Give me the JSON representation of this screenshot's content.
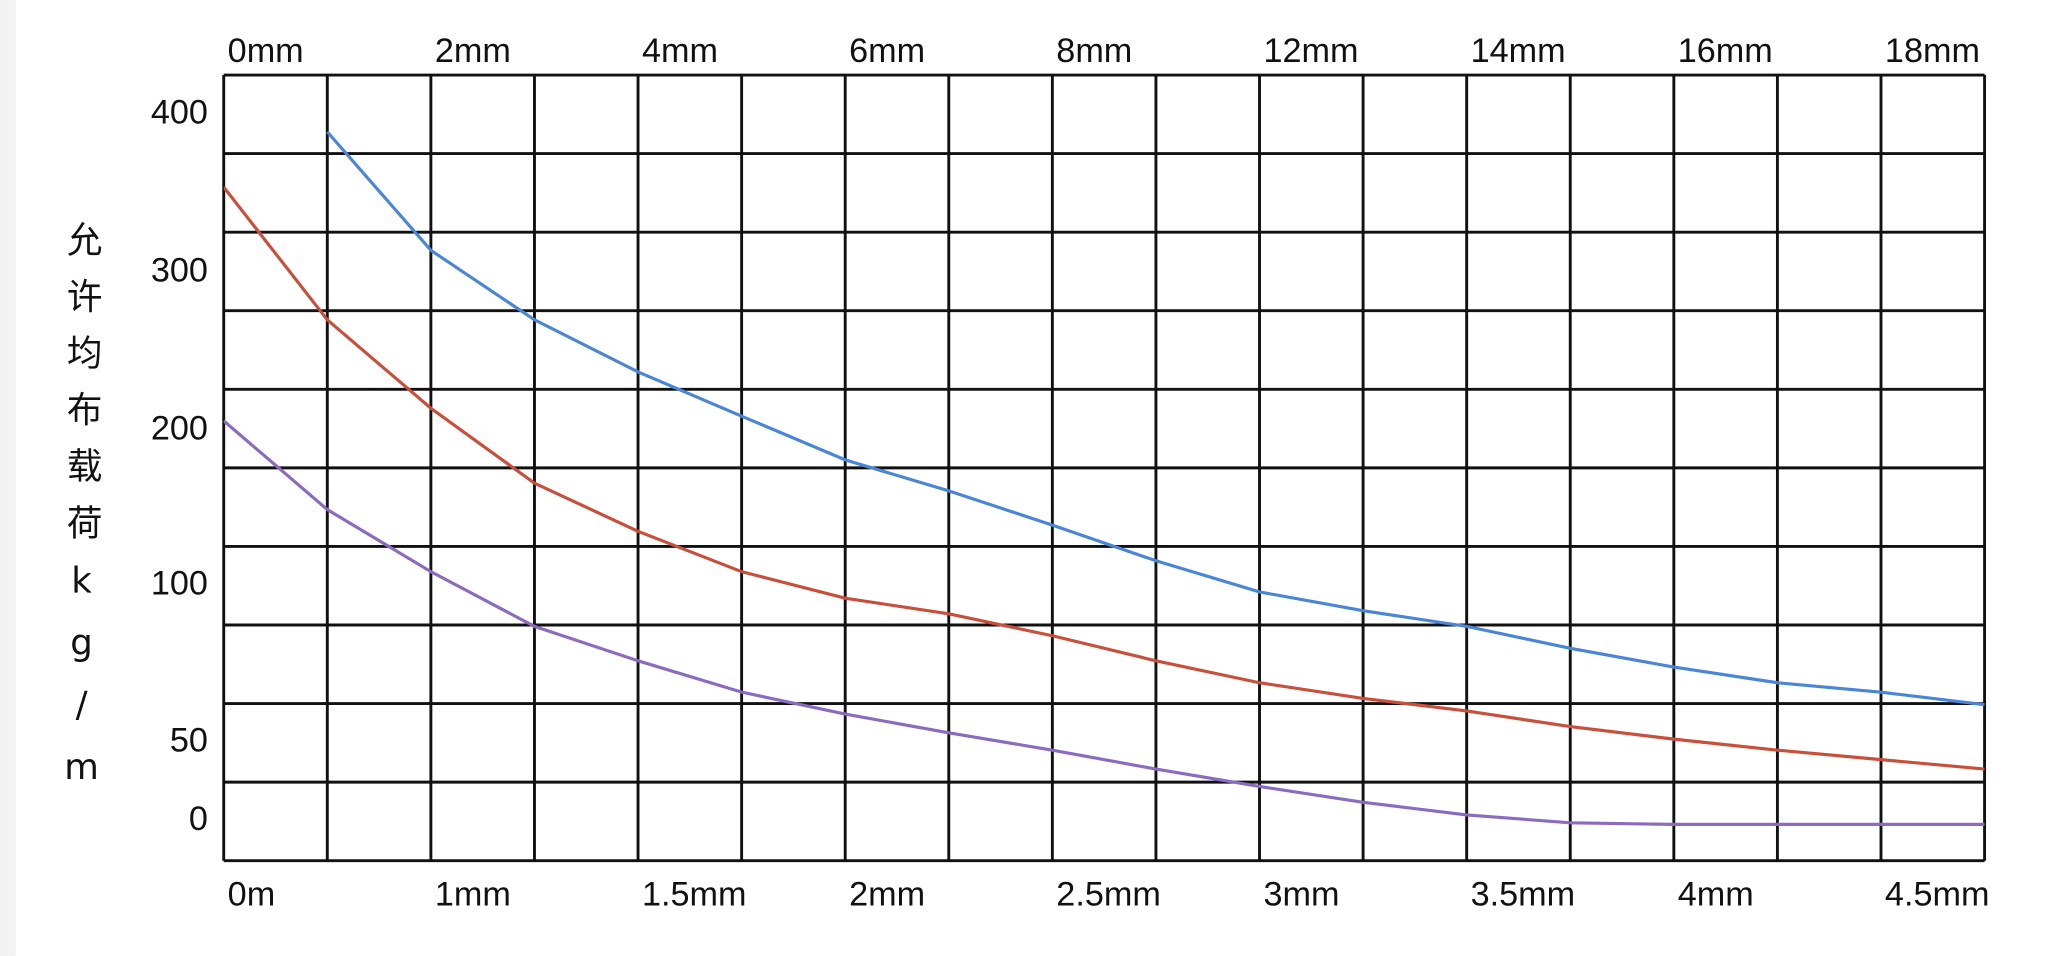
{
  "chart_data": {
    "type": "line",
    "y_label": "允许均布载荷kg/m",
    "categories": [
      "0mm",
      null,
      "2mm",
      null,
      "4mm",
      null,
      "6mm",
      null,
      "8mm",
      null,
      "12mm",
      null,
      "14mm",
      null,
      "16mm",
      null,
      "18mm",
      null
    ],
    "categories2": [
      "0m",
      null,
      "1mm",
      null,
      "1.5mm",
      null,
      "2mm",
      null,
      "2.5mm",
      null,
      "3mm",
      null,
      "3.5mm",
      null,
      "4mm",
      null,
      "4.5mm",
      null
    ],
    "ylim": [
      -25,
      425
    ],
    "yticks": [
      400,
      300,
      200,
      100,
      50,
      0
    ],
    "grid": true,
    "series": [
      {
        "color": "#4a86d6",
        "values": [
          null,
          389,
          314,
          270,
          237,
          209,
          181,
          161,
          139,
          116,
          98,
          92,
          87,
          80,
          74,
          69,
          66,
          62
        ]
      },
      {
        "color": "#c8503a",
        "values": [
          354,
          270,
          214,
          166,
          135,
          109,
          96,
          91,
          84,
          76,
          69,
          64,
          60,
          55,
          51,
          45,
          39,
          33
        ]
      },
      {
        "color": "#8a6bbf",
        "values": [
          206,
          149,
          109,
          87,
          76,
          66,
          59,
          53,
          45,
          33,
          22,
          12,
          4,
          -1,
          -2,
          -2,
          -2,
          -2
        ]
      }
    ]
  }
}
